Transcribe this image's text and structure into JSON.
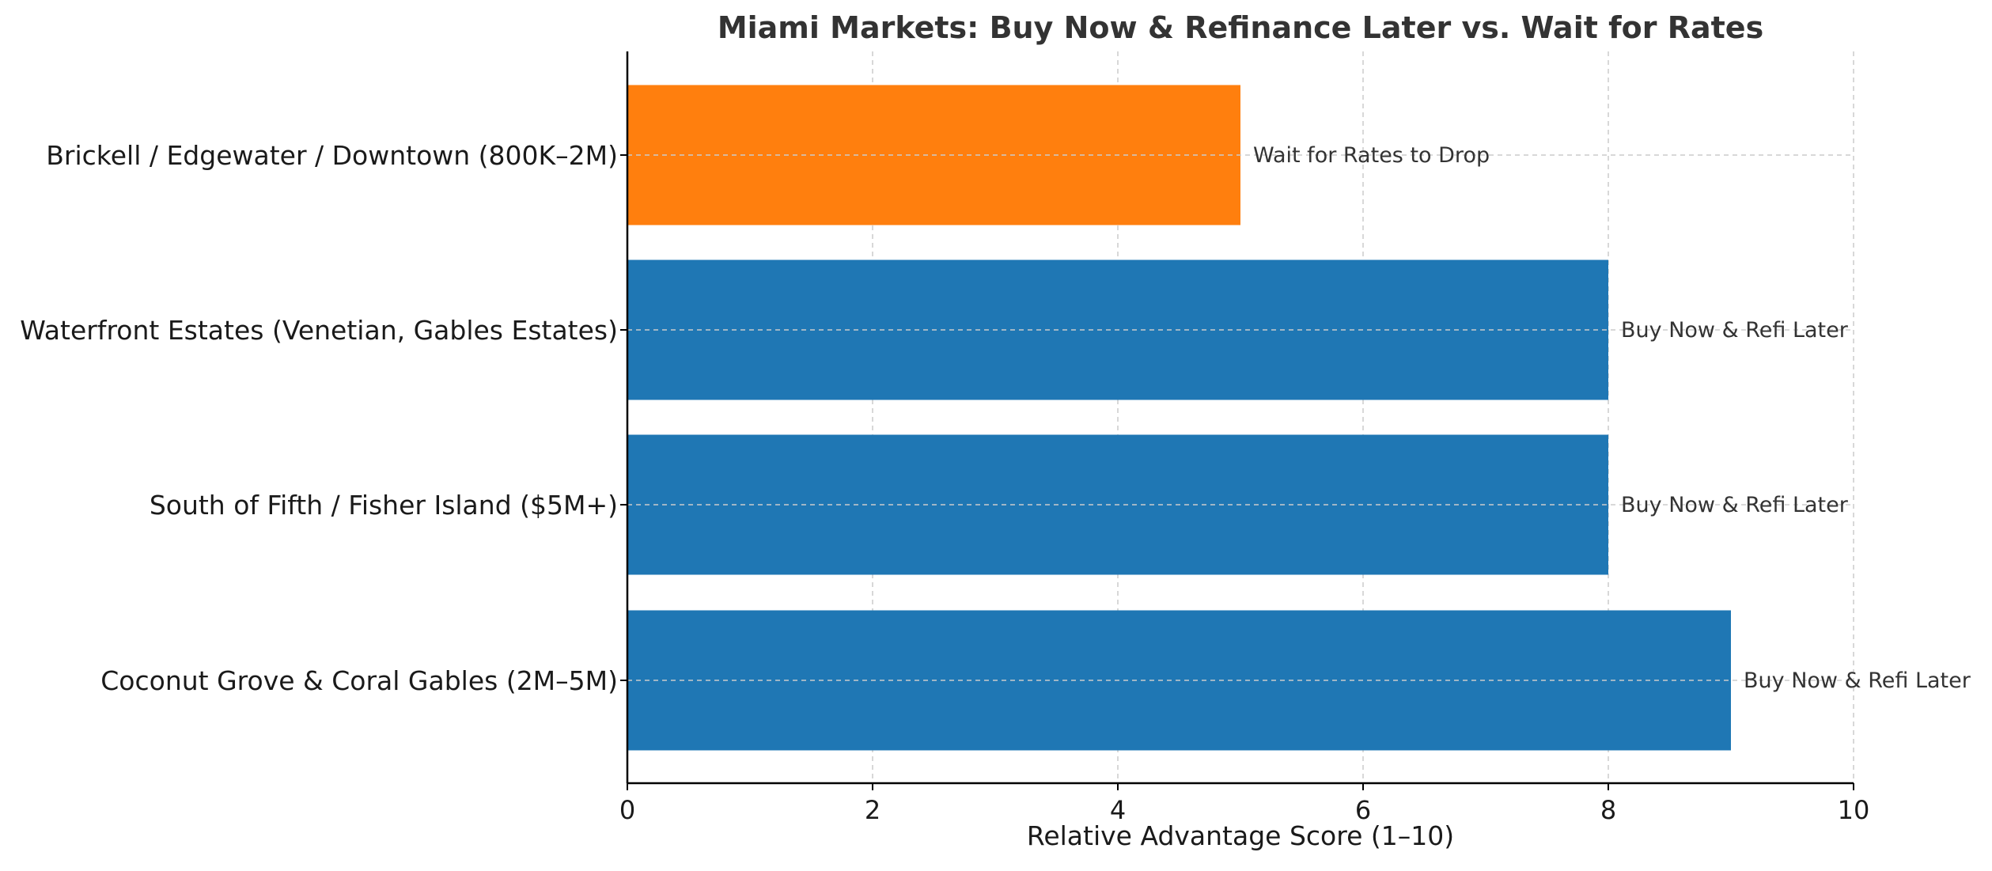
{
  "chart_data": {
    "type": "bar",
    "orientation": "horizontal",
    "title": "Miami Markets: Buy Now & Refinance Later vs. Wait for Rates",
    "xlabel": "Relative Advantage Score (1–10)",
    "ylabel": "",
    "xlim": [
      0,
      10
    ],
    "xticks": [
      "0",
      "2",
      "4",
      "6",
      "8",
      "10"
    ],
    "grid": true,
    "categories": [
      "Brickell / Edgewater / Downtown (800K–2M)",
      "Waterfront Estates (Venetian, Gables Estates)",
      "South of Fifth / Fisher Island ($5M+)",
      "Coconut Grove & Coral Gables (2M–5M)"
    ],
    "values": [
      5,
      8,
      8,
      9
    ],
    "bar_labels": [
      "Wait for Rates to Drop",
      "Buy Now & Refi Later",
      "Buy Now & Refi Later",
      "Buy Now & Refi Later"
    ],
    "bar_colors": [
      "#ff7f0e",
      "#1f77b4",
      "#1f77b4",
      "#1f77b4"
    ]
  }
}
